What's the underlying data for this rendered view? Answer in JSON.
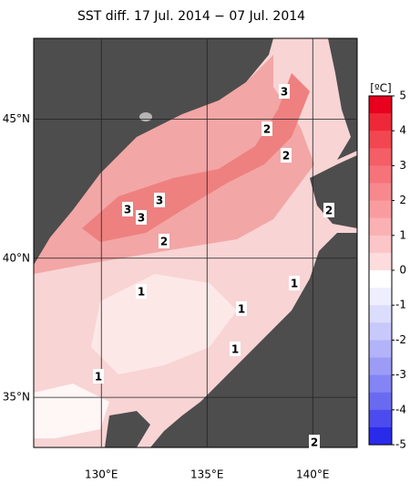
{
  "title": "SST diff. 17 Jul. 2014 − 07 Jul. 2014",
  "map": {
    "lon_range": [
      126.8,
      142.1
    ],
    "lat_range": [
      33.2,
      47.9
    ],
    "lon_ticks": [
      {
        "value": 130,
        "label": "130°E"
      },
      {
        "value": 135,
        "label": "135°E"
      },
      {
        "value": 140,
        "label": "140°E"
      }
    ],
    "lat_ticks": [
      {
        "value": 45,
        "label": "45°N"
      },
      {
        "value": 40,
        "label": "40°N"
      },
      {
        "value": 35,
        "label": "35°N"
      }
    ],
    "contour_labels": [
      "3",
      "2",
      "2",
      "3",
      "3",
      "3",
      "2",
      "2",
      "1",
      "1",
      "1",
      "1",
      "1",
      "2"
    ]
  },
  "colorbar": {
    "unit": "[ºC]",
    "ticks": [
      5,
      4,
      3,
      2,
      1,
      0,
      -1,
      -2,
      -3,
      -4,
      -5
    ],
    "colors": [
      "#e8001e",
      "#ee2838",
      "#f24650",
      "#f45e66",
      "#f6737a",
      "#f7888d",
      "#f99ca0",
      "#fbb0b3",
      "#fcc5c7",
      "#fedcdd",
      "#ffffff",
      "#eeeeff",
      "#dcdcfd",
      "#c8c8fb",
      "#b3b3f9",
      "#9c9cf7",
      "#8484f4",
      "#6a6af1",
      "#4c4cee",
      "#2a2aea"
    ]
  }
}
